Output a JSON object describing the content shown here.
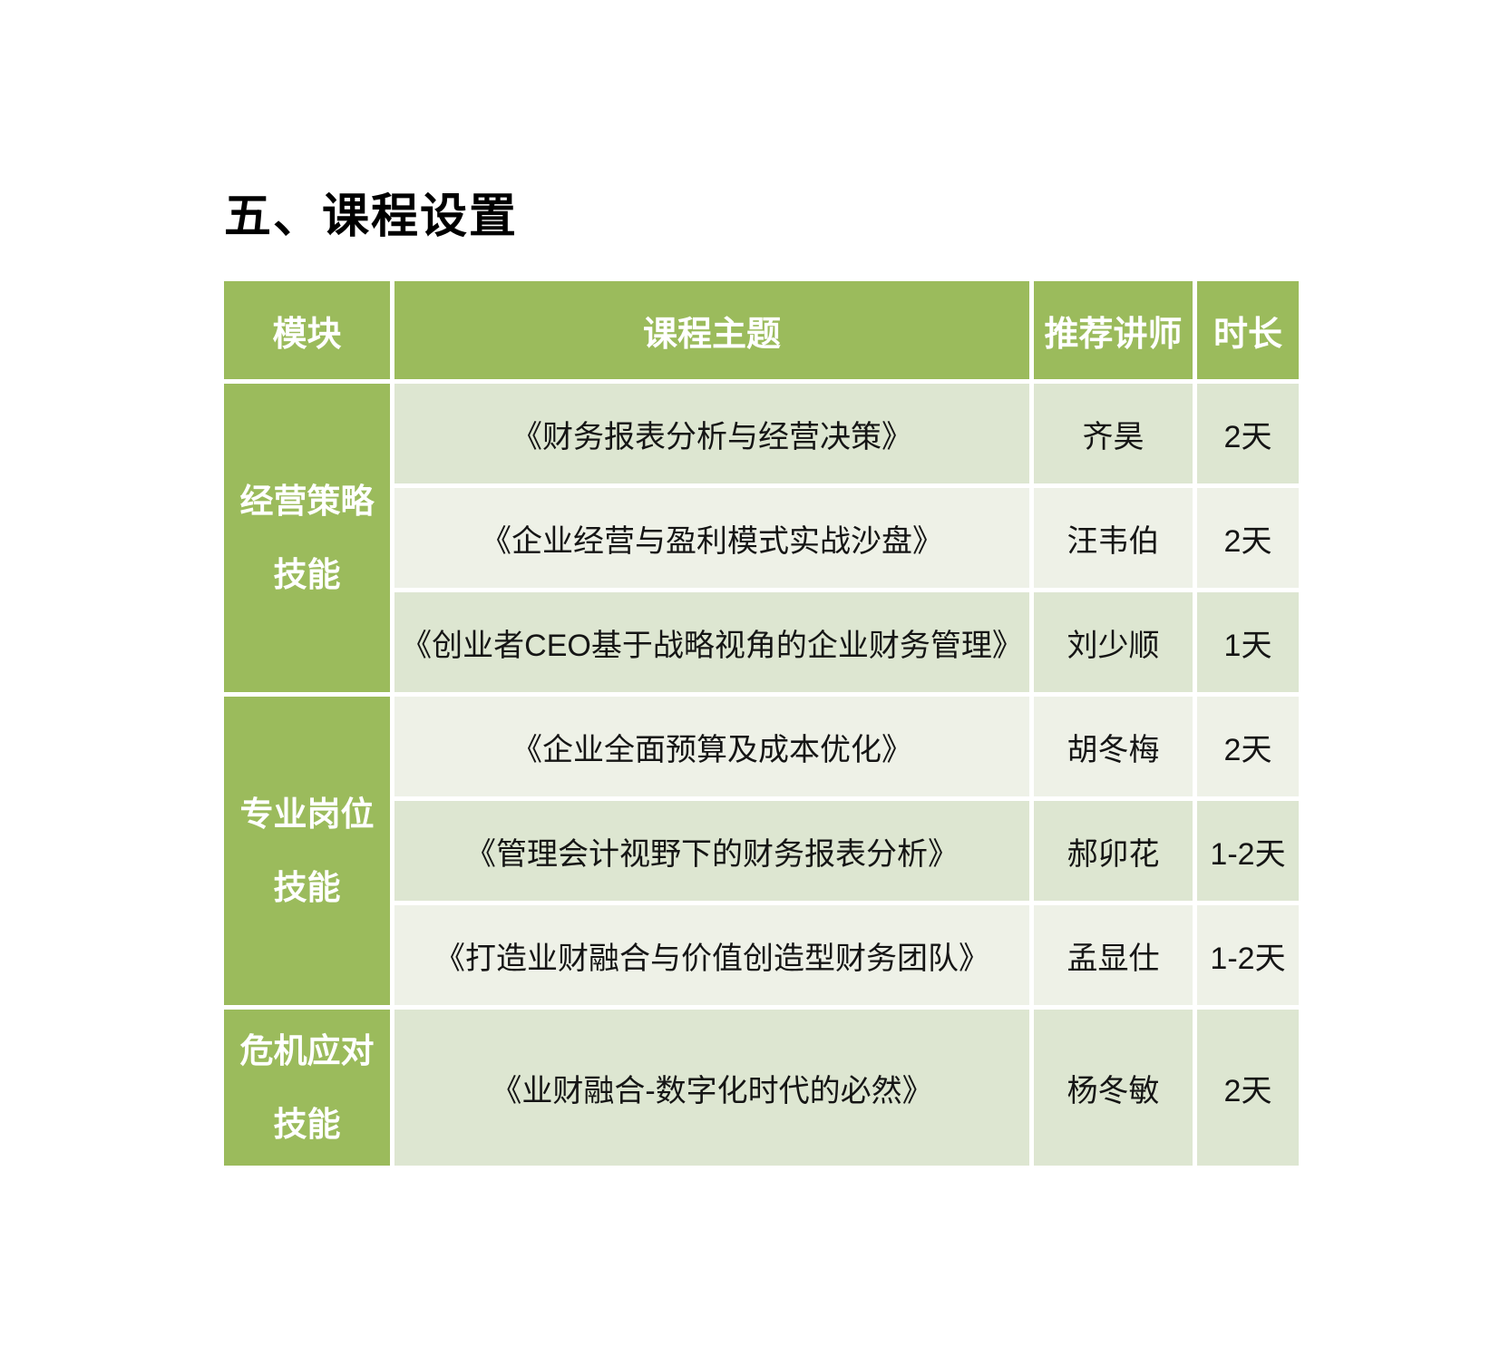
{
  "page": {
    "title": "五、课程设置"
  },
  "colors": {
    "header_green": "#9bbb5c",
    "row_dark": "#dde6d1",
    "row_light": "#eef1e7",
    "header_text": "#ffffff",
    "body_text": "#151515"
  },
  "table": {
    "headers": {
      "module": "模块",
      "topic": "课程主题",
      "lecturer": "推荐讲师",
      "duration": "时长"
    },
    "modules": [
      {
        "label": "经营策略\n技能"
      },
      {
        "label": "专业岗位\n技能"
      },
      {
        "label": "危机应对\n技能"
      }
    ],
    "rows": [
      {
        "topic": "《财务报表分析与经营决策》",
        "lecturer": "齐昊",
        "duration": "2天"
      },
      {
        "topic": "《企业经营与盈利模式实战沙盘》",
        "lecturer": "汪韦伯",
        "duration": "2天"
      },
      {
        "topic": "《创业者CEO基于战略视角的企业财务管理》",
        "lecturer": "刘少顺",
        "duration": "1天"
      },
      {
        "topic": "《企业全面预算及成本优化》",
        "lecturer": "胡冬梅",
        "duration": "2天"
      },
      {
        "topic": "《管理会计视野下的财务报表分析》",
        "lecturer": "郝卯花",
        "duration": "1-2天"
      },
      {
        "topic": "《打造业财融合与价值创造型财务团队》",
        "lecturer": "孟显仕",
        "duration": "1-2天"
      },
      {
        "topic": "《业财融合-数字化时代的必然》",
        "lecturer": "杨冬敏",
        "duration": "2天"
      }
    ]
  }
}
